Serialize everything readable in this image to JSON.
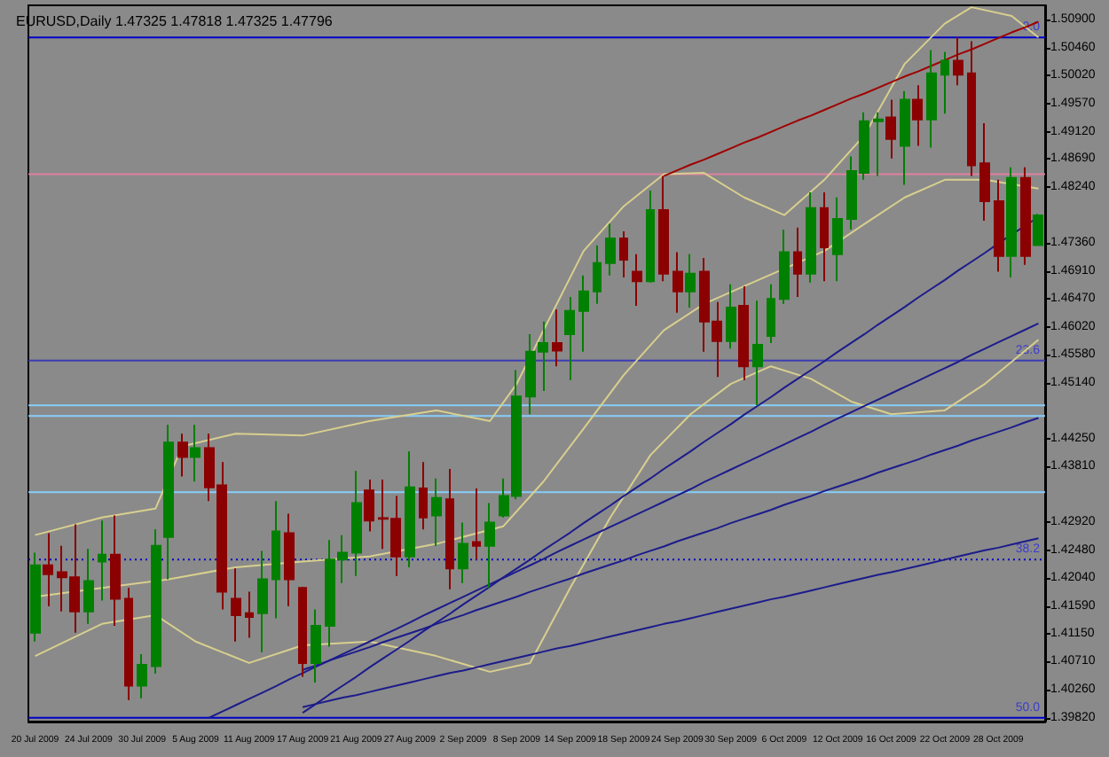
{
  "chart_data": {
    "type": "candlestick",
    "title": "EURUSD,Daily 1.47325 1.47818 1.47325 1.47796",
    "categories": [
      "20 Jul 2009",
      null,
      null,
      null,
      "24 Jul 2009",
      null,
      null,
      null,
      "30 Jul 2009",
      null,
      null,
      null,
      "5 Aug 2009",
      null,
      null,
      null,
      "11 Aug 2009",
      null,
      null,
      null,
      "17 Aug 2009",
      null,
      null,
      null,
      "21 Aug 2009",
      null,
      null,
      null,
      "27 Aug 2009",
      null,
      null,
      null,
      "2 Sep 2009",
      null,
      null,
      null,
      "8 Sep 2009",
      null,
      null,
      null,
      "14 Sep 2009",
      null,
      null,
      null,
      "18 Sep 2009",
      null,
      null,
      null,
      "24 Sep 2009",
      null,
      null,
      null,
      "30 Sep 2009",
      null,
      null,
      null,
      "6 Oct 2009",
      null,
      null,
      null,
      "12 Oct 2009",
      null,
      null,
      null,
      "16 Oct 2009",
      null,
      null,
      null,
      "22 Oct 2009",
      null,
      null,
      null,
      "28 Oct 2009",
      null,
      null,
      null
    ],
    "colors": [
      "#008000",
      "#8b0000",
      "#8b0000",
      "#8b0000",
      "#008000",
      "#008000",
      "#8b0000",
      "#8b0000",
      "#008000",
      "#008000",
      "#008000",
      "#8b0000",
      "#008000",
      "#8b0000",
      "#8b0000",
      "#8b0000",
      "#8b0000",
      "#008000",
      "#008000",
      "#8b0000",
      "#8b0000",
      "#008000",
      "#008000",
      "#008000",
      "#008000",
      "#8b0000",
      "#8b0000",
      "#8b0000",
      "#008000",
      "#8b0000",
      "#008000",
      "#8b0000",
      "#008000",
      "#8b0000",
      "#008000",
      "#008000",
      "#008000",
      "#008000",
      "#008000",
      "#8b0000",
      "#008000",
      "#008000",
      "#008000",
      "#008000",
      "#8b0000",
      "#8b0000",
      "#008000",
      "#8b0000",
      "#8b0000",
      "#008000",
      "#8b0000",
      "#8b0000",
      "#008000",
      "#8b0000",
      "#008000",
      "#008000",
      "#008000",
      "#8b0000",
      "#008000",
      "#8b0000",
      "#008000",
      "#008000",
      "#008000",
      "#008000",
      "#8b0000",
      "#008000",
      "#8b0000",
      "#008000",
      "#008000",
      "#8b0000",
      "#8b0000",
      "#8b0000",
      "#8b0000",
      "#008000",
      "#8b0000",
      "#008000"
    ],
    "ohlc": [
      [
        1.4117,
        1.4244,
        1.4103,
        1.4224
      ],
      [
        1.4224,
        1.4275,
        1.4159,
        1.421
      ],
      [
        1.4213,
        1.4255,
        1.4151,
        1.4205
      ],
      [
        1.4205,
        1.4289,
        1.4117,
        1.4151
      ],
      [
        1.4151,
        1.425,
        1.4131,
        1.4199
      ],
      [
        1.423,
        1.4295,
        1.4168,
        1.4241
      ],
      [
        1.4241,
        1.4303,
        1.4128,
        1.4171
      ],
      [
        1.4171,
        1.4188,
        1.401,
        1.4033
      ],
      [
        1.4033,
        1.4083,
        1.4013,
        1.4066
      ],
      [
        1.4064,
        1.4281,
        1.4052,
        1.4255
      ],
      [
        1.4269,
        1.4447,
        1.4202,
        1.4419
      ],
      [
        1.4419,
        1.4433,
        1.4365,
        1.4396
      ],
      [
        1.4396,
        1.4447,
        1.4357,
        1.441
      ],
      [
        1.441,
        1.4433,
        1.4326,
        1.4348
      ],
      [
        1.4351,
        1.4388,
        1.4154,
        1.4182
      ],
      [
        1.4171,
        1.4219,
        1.4103,
        1.4145
      ],
      [
        1.4148,
        1.4182,
        1.4109,
        1.4142
      ],
      [
        1.4148,
        1.4247,
        1.4086,
        1.4202
      ],
      [
        1.4202,
        1.4326,
        1.414,
        1.4278
      ],
      [
        1.4275,
        1.4306,
        1.4159,
        1.4202
      ],
      [
        1.4188,
        1.419,
        1.4047,
        1.4069
      ],
      [
        1.4069,
        1.4154,
        1.4038,
        1.4128
      ],
      [
        1.4128,
        1.4264,
        1.4095,
        1.4233
      ],
      [
        1.4233,
        1.4272,
        1.4196,
        1.4244
      ],
      [
        1.4244,
        1.4374,
        1.4207,
        1.4323
      ],
      [
        1.4343,
        1.436,
        1.4278,
        1.4295
      ],
      [
        1.4299,
        1.436,
        1.425,
        1.4298
      ],
      [
        1.4298,
        1.4334,
        1.4207,
        1.4238
      ],
      [
        1.4238,
        1.4405,
        1.4221,
        1.4348
      ],
      [
        1.4346,
        1.4388,
        1.4281,
        1.43
      ],
      [
        1.4303,
        1.4362,
        1.4255,
        1.4331
      ],
      [
        1.4329,
        1.4377,
        1.4186,
        1.4219
      ],
      [
        1.4219,
        1.4292,
        1.4196,
        1.4258
      ],
      [
        1.4261,
        1.4346,
        1.4233,
        1.4255
      ],
      [
        1.4255,
        1.4323,
        1.4188,
        1.4292
      ],
      [
        1.4303,
        1.4362,
        1.43,
        1.4334
      ],
      [
        1.4334,
        1.4534,
        1.4329,
        1.4492
      ],
      [
        1.4492,
        1.4591,
        1.4464,
        1.4563
      ],
      [
        1.4563,
        1.4611,
        1.4501,
        1.4577
      ],
      [
        1.4577,
        1.463,
        1.454,
        1.4565
      ],
      [
        1.4591,
        1.465,
        1.4518,
        1.4628
      ],
      [
        1.4628,
        1.4684,
        1.4563,
        1.4659
      ],
      [
        1.4659,
        1.4732,
        1.4639,
        1.4704
      ],
      [
        1.4704,
        1.4766,
        1.4684,
        1.4743
      ],
      [
        1.4743,
        1.4754,
        1.4681,
        1.4709
      ],
      [
        1.469,
        1.4718,
        1.4636,
        1.4675
      ],
      [
        1.4675,
        1.4819,
        1.4673,
        1.4788
      ],
      [
        1.4788,
        1.4842,
        1.4675,
        1.4687
      ],
      [
        1.469,
        1.4721,
        1.4625,
        1.4659
      ],
      [
        1.4659,
        1.4718,
        1.4633,
        1.4687
      ],
      [
        1.469,
        1.4712,
        1.4563,
        1.4611
      ],
      [
        1.4611,
        1.4642,
        1.4523,
        1.458
      ],
      [
        1.458,
        1.467,
        1.4568,
        1.4633
      ],
      [
        1.4636,
        1.4667,
        1.4518,
        1.454
      ],
      [
        1.454,
        1.4644,
        1.4478,
        1.4574
      ],
      [
        1.4588,
        1.467,
        1.4577,
        1.4647
      ],
      [
        1.4647,
        1.4757,
        1.4639,
        1.4721
      ],
      [
        1.4721,
        1.476,
        1.465,
        1.4687
      ],
      [
        1.4687,
        1.4816,
        1.4673,
        1.4791
      ],
      [
        1.4791,
        1.4816,
        1.4675,
        1.4729
      ],
      [
        1.4718,
        1.4808,
        1.4675,
        1.4774
      ],
      [
        1.4774,
        1.4873,
        1.4757,
        1.485
      ],
      [
        1.4847,
        1.4943,
        1.4836,
        1.4929
      ],
      [
        1.4929,
        1.4943,
        1.4842,
        1.4932
      ],
      [
        1.4935,
        1.4963,
        1.487,
        1.4901
      ],
      [
        1.489,
        1.4977,
        1.4828,
        1.4963
      ],
      [
        1.4963,
        1.4986,
        1.489,
        1.4932
      ],
      [
        1.4932,
        1.5042,
        1.4887,
        1.5005
      ],
      [
        1.5003,
        1.5039,
        1.4941,
        1.5025
      ],
      [
        1.5025,
        1.5062,
        1.4986,
        1.5003
      ],
      [
        1.5005,
        1.5056,
        1.4842,
        1.4859
      ],
      [
        1.4862,
        1.4926,
        1.4771,
        1.4802
      ],
      [
        1.4802,
        1.4836,
        1.469,
        1.4715
      ],
      [
        1.4715,
        1.4856,
        1.4681,
        1.4839
      ],
      [
        1.4839,
        1.4856,
        1.4701,
        1.4715
      ],
      [
        1.47325,
        1.47818,
        1.47325,
        1.47796
      ]
    ],
    "series": [
      {
        "type": "line",
        "color": "#d8cf8e",
        "values": [
          1.4272,
          null,
          null,
          null,
          null,
          1.43,
          null,
          null,
          null,
          1.4314,
          null,
          1.4413,
          null,
          null,
          null,
          1.4433,
          null,
          null,
          null,
          null,
          1.443,
          null,
          null,
          null,
          null,
          1.4453,
          null,
          null,
          null,
          null,
          1.447,
          null,
          null,
          null,
          1.4453,
          null,
          1.4512,
          null,
          1.4597,
          null,
          null,
          1.4723,
          null,
          null,
          1.4794,
          null,
          null,
          1.4845,
          null,
          null,
          1.4847,
          null,
          null,
          1.4808,
          null,
          null,
          1.478,
          null,
          null,
          1.4836,
          null,
          null,
          1.4907,
          null,
          null,
          1.502,
          null,
          null,
          1.5084,
          null,
          1.511,
          null,
          null,
          1.5096,
          null,
          1.5062
        ]
      },
      {
        "type": "line",
        "color": "#d8cf8e",
        "values": [
          1.4174,
          null,
          null,
          null,
          null,
          1.4188,
          null,
          null,
          null,
          null,
          1.4202,
          null,
          null,
          null,
          null,
          1.4221,
          null,
          null,
          null,
          null,
          1.423,
          null,
          null,
          null,
          null,
          1.4238,
          null,
          null,
          null,
          null,
          1.4258,
          null,
          null,
          null,
          null,
          1.4286,
          null,
          null,
          1.4357,
          null,
          null,
          1.4441,
          null,
          null,
          1.4526,
          null,
          null,
          1.4597,
          null,
          null,
          1.4639,
          null,
          null,
          1.4667,
          null,
          null,
          1.4695,
          null,
          null,
          1.4723,
          null,
          null,
          1.4766,
          null,
          null,
          1.4808,
          null,
          null,
          1.4836,
          null,
          null,
          1.4836,
          null,
          null,
          null,
          1.4822
        ]
      },
      {
        "type": "line",
        "color": "#d8cf8e",
        "values": [
          1.408,
          null,
          null,
          null,
          null,
          1.4131,
          null,
          null,
          null,
          1.4145,
          null,
          null,
          1.4103,
          null,
          null,
          null,
          1.4069,
          null,
          null,
          null,
          1.4097,
          null,
          null,
          null,
          null,
          1.4103,
          null,
          null,
          null,
          null,
          1.408,
          null,
          null,
          null,
          1.4055,
          null,
          null,
          1.4069,
          null,
          null,
          1.4188,
          null,
          null,
          1.43,
          null,
          null,
          1.4399,
          null,
          null,
          1.4464,
          null,
          null,
          1.4512,
          null,
          null,
          1.454,
          null,
          null,
          1.452,
          null,
          null,
          1.4484,
          null,
          null,
          1.4464,
          null,
          null,
          null,
          1.447,
          null,
          null,
          1.4512,
          null,
          null,
          null,
          1.4582
        ]
      },
      {
        "type": "line",
        "color": "#a00000",
        "values": [
          null,
          null,
          null,
          null,
          null,
          null,
          null,
          null,
          null,
          null,
          null,
          null,
          null,
          null,
          null,
          null,
          null,
          null,
          null,
          null,
          null,
          null,
          null,
          null,
          null,
          null,
          null,
          null,
          null,
          null,
          null,
          null,
          null,
          null,
          null,
          null,
          null,
          null,
          null,
          null,
          null,
          null,
          null,
          null,
          null,
          null,
          null,
          1.4842,
          1.4851,
          1.486,
          1.4868,
          1.4877,
          1.4886,
          1.4895,
          1.4903,
          1.4912,
          1.4921,
          1.493,
          1.4938,
          1.4947,
          1.4956,
          1.4965,
          1.4973,
          1.4982,
          1.4991,
          1.5,
          1.5008,
          1.5017,
          1.5026,
          1.5035,
          1.5043,
          1.5052,
          1.5061,
          1.507,
          1.5078,
          1.5087
        ]
      },
      {
        "type": "line",
        "color": "#1c1c8c",
        "values": [
          null,
          null,
          null,
          null,
          null,
          null,
          null,
          null,
          null,
          null,
          null,
          null,
          null,
          null,
          null,
          null,
          null,
          null,
          null,
          null,
          1.399,
          1.4004,
          1.4019,
          1.4033,
          1.4047,
          1.4062,
          1.4076,
          1.409,
          1.4104,
          1.4119,
          1.4133,
          1.4147,
          1.4162,
          1.4176,
          1.419,
          1.4205,
          1.4219,
          1.4233,
          1.4248,
          1.4262,
          1.4276,
          1.4291,
          1.4305,
          1.4319,
          1.4334,
          1.4348,
          1.4362,
          1.4377,
          1.4391,
          1.4405,
          1.442,
          1.4434,
          1.4448,
          1.4463,
          1.4477,
          1.4491,
          1.4506,
          1.452,
          1.4534,
          1.4548,
          1.4563,
          1.4577,
          1.4591,
          1.4606,
          1.462,
          1.4634,
          1.4649,
          1.4663,
          1.4677,
          1.4692,
          1.4706,
          1.472,
          1.4735,
          1.4749,
          1.4763,
          1.4777
        ]
      },
      {
        "type": "line",
        "color": "#1c1c8c",
        "values": [
          null,
          null,
          null,
          null,
          null,
          null,
          null,
          null,
          null,
          null,
          null,
          null,
          null,
          1.3982,
          1.3992,
          1.4002,
          1.4012,
          1.4022,
          1.4032,
          1.4043,
          1.4053,
          1.4063,
          1.4073,
          1.4083,
          1.4093,
          1.4103,
          1.4113,
          1.4123,
          1.4133,
          1.4144,
          1.4154,
          1.4164,
          1.4174,
          1.4184,
          1.4194,
          1.4204,
          1.4214,
          1.4224,
          1.4234,
          1.4245,
          1.4255,
          1.4265,
          1.4275,
          1.4285,
          1.4295,
          1.4305,
          1.4315,
          1.4325,
          1.4335,
          1.4345,
          1.4356,
          1.4366,
          1.4376,
          1.4386,
          1.4396,
          1.4406,
          1.4416,
          1.4426,
          1.4436,
          1.4447,
          1.4457,
          1.4467,
          1.4477,
          1.4487,
          1.4497,
          1.4507,
          1.4517,
          1.4527,
          1.4537,
          1.4547,
          1.4558,
          1.4568,
          1.4578,
          1.4588,
          1.4598,
          1.4608
        ]
      },
      {
        "type": "line",
        "color": "#1c1c8c",
        "values": [
          null,
          null,
          null,
          null,
          null,
          null,
          null,
          null,
          null,
          null,
          null,
          null,
          null,
          null,
          null,
          null,
          null,
          null,
          null,
          null,
          1.4058,
          1.4065,
          1.4073,
          1.408,
          1.4087,
          1.4094,
          1.4102,
          1.4109,
          1.4116,
          1.4123,
          1.4131,
          1.4138,
          1.4145,
          1.4153,
          1.416,
          1.4167,
          1.4174,
          1.4182,
          1.4189,
          1.4196,
          1.4203,
          1.4211,
          1.4218,
          1.4225,
          1.4232,
          1.424,
          1.4247,
          1.4254,
          1.4262,
          1.4269,
          1.4276,
          1.4283,
          1.4291,
          1.4298,
          1.4305,
          1.4312,
          1.432,
          1.4327,
          1.4334,
          1.4342,
          1.4349,
          1.4356,
          1.4363,
          1.4371,
          1.4378,
          1.4385,
          1.4392,
          1.44,
          1.4407,
          1.4414,
          1.4422,
          1.4429,
          1.4436,
          1.4443,
          1.4451,
          1.4458
        ]
      },
      {
        "type": "line",
        "color": "#1c1c8c",
        "values": [
          null,
          null,
          null,
          null,
          null,
          null,
          null,
          null,
          null,
          null,
          null,
          null,
          null,
          null,
          null,
          null,
          null,
          null,
          null,
          null,
          1.3999,
          1.4004,
          1.4009,
          1.4014,
          1.4018,
          1.4023,
          1.4028,
          1.4033,
          1.4038,
          1.4043,
          1.4048,
          1.4053,
          1.4057,
          1.4062,
          1.4067,
          1.4072,
          1.4077,
          1.4082,
          1.4087,
          1.4092,
          1.4096,
          1.4101,
          1.4106,
          1.4111,
          1.4116,
          1.4121,
          1.4126,
          1.4131,
          1.4135,
          1.414,
          1.4145,
          1.415,
          1.4155,
          1.416,
          1.4165,
          1.417,
          1.4174,
          1.4179,
          1.4184,
          1.4189,
          1.4194,
          1.4199,
          1.4204,
          1.4209,
          1.4213,
          1.4218,
          1.4223,
          1.4228,
          1.4233,
          1.4238,
          1.4243,
          1.4248,
          1.4252,
          1.4257,
          1.4262,
          1.4267
        ]
      }
    ],
    "ylim": [
      1.3976,
      1.5113
    ],
    "yticks": [
      {
        "value": 1.509,
        "label": "1.50900"
      },
      {
        "value": 1.5046,
        "label": "1.50460"
      },
      {
        "value": 1.5002,
        "label": "1.50020"
      },
      {
        "value": 1.4957,
        "label": "1.49570"
      },
      {
        "value": 1.4912,
        "label": "1.49120"
      },
      {
        "value": 1.4869,
        "label": "1.48690"
      },
      {
        "value": 1.4824,
        "label": "1.48240"
      },
      {
        "value": 1.4736,
        "label": "1.47360"
      },
      {
        "value": 1.4691,
        "label": "1.46910"
      },
      {
        "value": 1.4647,
        "label": "1.46470"
      },
      {
        "value": 1.4602,
        "label": "1.46020"
      },
      {
        "value": 1.4558,
        "label": "1.45580"
      },
      {
        "value": 1.4514,
        "label": "1.45140"
      },
      {
        "value": 1.4425,
        "label": "1.44250"
      },
      {
        "value": 1.4381,
        "label": "1.43810"
      },
      {
        "value": 1.4292,
        "label": "1.42920"
      },
      {
        "value": 1.4248,
        "label": "1.42480"
      },
      {
        "value": 1.4204,
        "label": "1.42040"
      },
      {
        "value": 1.4159,
        "label": "1.41590"
      },
      {
        "value": 1.4115,
        "label": "1.41150"
      },
      {
        "value": 1.4071,
        "label": "1.40710"
      },
      {
        "value": 1.4026,
        "label": "1.40260"
      },
      {
        "value": 1.3982,
        "label": "1.39820"
      }
    ],
    "ref_lines": [
      {
        "axis": "y",
        "value": 1.5062,
        "color": "#0000c8"
      },
      {
        "axis": "y",
        "value": 1.4845,
        "color": "#e080a0"
      },
      {
        "axis": "y",
        "value": 1.4549,
        "color": "#3c3cb4"
      },
      {
        "axis": "y",
        "value": 1.4478,
        "color": "#87cefa"
      },
      {
        "axis": "y",
        "value": 1.4461,
        "color": "#87cefa"
      },
      {
        "axis": "y",
        "value": 1.434,
        "color": "#87cefa"
      },
      {
        "axis": "y",
        "value": 1.4233,
        "color": "#0000c8",
        "line_style": "dotted"
      },
      {
        "axis": "y",
        "value": 1.3982,
        "color": "#0000c8"
      }
    ],
    "annotations": [
      {
        "text": "0.0",
        "y": 1.5062
      },
      {
        "text": "23.6",
        "y": 1.4549
      },
      {
        "text": "38.2",
        "y": 1.4233
      },
      {
        "text": "50.0",
        "y": 1.3982
      }
    ]
  }
}
